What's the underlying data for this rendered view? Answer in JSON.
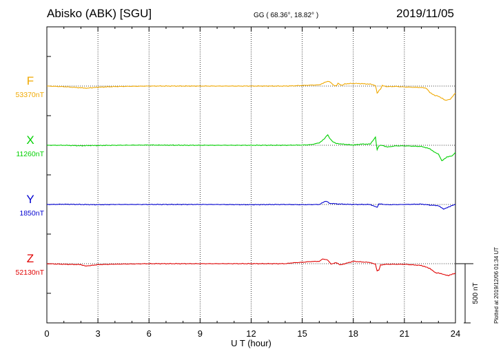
{
  "header": {
    "title": "Abisko (ABK)  [SGU]",
    "coords": "GG ( 68.36°,  18.82° )",
    "date": "2019/11/05"
  },
  "footer": {
    "plotted": "Plotted at 2019/12/06 01:34 UT"
  },
  "colors": {
    "F": "#f0a800",
    "X": "#00d000",
    "Y": "#0000d0",
    "Z": "#e00000"
  },
  "chart_data": {
    "type": "line",
    "xlabel": "U T (hour)",
    "xlim": [
      0,
      24
    ],
    "x_ticks": [
      "0",
      "3",
      "6",
      "9",
      "12",
      "15",
      "18",
      "21",
      "24"
    ],
    "scale_label": "500 nT",
    "scale_nT": 500,
    "series": [
      {
        "name": "F",
        "baseline_label": "53370nT",
        "color": "#f0a800",
        "baseline_nT": 53370,
        "points": [
          [
            0,
            0
          ],
          [
            1,
            -5
          ],
          [
            2,
            -15
          ],
          [
            2.3,
            -18
          ],
          [
            3,
            -10
          ],
          [
            4,
            -4
          ],
          [
            5,
            -2
          ],
          [
            6,
            0
          ],
          [
            8,
            0
          ],
          [
            10,
            0
          ],
          [
            12,
            0
          ],
          [
            14,
            0
          ],
          [
            14.5,
            2
          ],
          [
            15,
            5
          ],
          [
            15.5,
            8
          ],
          [
            16,
            10
          ],
          [
            16.3,
            30
          ],
          [
            16.5,
            40
          ],
          [
            16.7,
            30
          ],
          [
            16.8,
            10
          ],
          [
            17,
            0
          ],
          [
            17.1,
            25
          ],
          [
            17.3,
            5
          ],
          [
            17.5,
            18
          ],
          [
            18,
            22
          ],
          [
            18.5,
            20
          ],
          [
            19,
            16
          ],
          [
            19.3,
            5
          ],
          [
            19.4,
            -60
          ],
          [
            19.5,
            -40
          ],
          [
            19.6,
            -25
          ],
          [
            19.7,
            5
          ],
          [
            20,
            -5
          ],
          [
            20.5,
            -3
          ],
          [
            21,
            -8
          ],
          [
            21.5,
            -10
          ],
          [
            22,
            -12
          ],
          [
            22.3,
            -20
          ],
          [
            22.5,
            -55
          ],
          [
            22.8,
            -80
          ],
          [
            23,
            -85
          ],
          [
            23.4,
            -120
          ],
          [
            23.7,
            -110
          ],
          [
            24,
            -60
          ]
        ]
      },
      {
        "name": "X",
        "baseline_label": "11260nT",
        "color": "#00d000",
        "baseline_nT": 11260,
        "points": [
          [
            0,
            0
          ],
          [
            1,
            0
          ],
          [
            2,
            -4
          ],
          [
            2.5,
            -2
          ],
          [
            3,
            -2
          ],
          [
            4,
            0
          ],
          [
            6,
            2
          ],
          [
            8,
            0
          ],
          [
            10,
            0
          ],
          [
            12,
            0
          ],
          [
            14,
            0
          ],
          [
            15,
            2
          ],
          [
            15.5,
            5
          ],
          [
            16,
            20
          ],
          [
            16.3,
            55
          ],
          [
            16.5,
            90
          ],
          [
            16.6,
            60
          ],
          [
            16.8,
            30
          ],
          [
            17,
            15
          ],
          [
            17.5,
            8
          ],
          [
            18,
            2
          ],
          [
            18.5,
            10
          ],
          [
            19,
            10
          ],
          [
            19.3,
            70
          ],
          [
            19.4,
            -40
          ],
          [
            19.5,
            -5
          ],
          [
            19.7,
            0
          ],
          [
            20,
            -15
          ],
          [
            20.5,
            -5
          ],
          [
            21,
            -5
          ],
          [
            22,
            -10
          ],
          [
            22.5,
            -30
          ],
          [
            22.8,
            -60
          ],
          [
            23,
            -75
          ],
          [
            23.2,
            -130
          ],
          [
            23.5,
            -100
          ],
          [
            23.8,
            -90
          ],
          [
            24,
            -60
          ]
        ]
      },
      {
        "name": "Y",
        "baseline_label": "1850nT",
        "color": "#0000d0",
        "baseline_nT": 1850,
        "points": [
          [
            0,
            0
          ],
          [
            1,
            2
          ],
          [
            2,
            0
          ],
          [
            3,
            -2
          ],
          [
            4,
            0
          ],
          [
            6,
            0
          ],
          [
            8,
            0
          ],
          [
            10,
            0
          ],
          [
            12,
            -2
          ],
          [
            14,
            0
          ],
          [
            15,
            -2
          ],
          [
            16,
            0
          ],
          [
            16.4,
            30
          ],
          [
            16.6,
            10
          ],
          [
            17,
            5
          ],
          [
            17.5,
            2
          ],
          [
            18,
            0
          ],
          [
            19,
            0
          ],
          [
            19.4,
            -25
          ],
          [
            19.5,
            5
          ],
          [
            20,
            -2
          ],
          [
            21,
            0
          ],
          [
            22,
            3
          ],
          [
            22.5,
            -5
          ],
          [
            23,
            -10
          ],
          [
            23.3,
            -40
          ],
          [
            23.6,
            -20
          ],
          [
            24,
            0
          ]
        ]
      },
      {
        "name": "Z",
        "baseline_label": "52130nT",
        "color": "#e00000",
        "baseline_nT": 52130,
        "points": [
          [
            0,
            0
          ],
          [
            1,
            -5
          ],
          [
            2,
            -8
          ],
          [
            2.3,
            -20
          ],
          [
            3,
            -8
          ],
          [
            4,
            -4
          ],
          [
            5,
            -2
          ],
          [
            6,
            0
          ],
          [
            8,
            0
          ],
          [
            10,
            0
          ],
          [
            12,
            0
          ],
          [
            14,
            0
          ],
          [
            14.5,
            8
          ],
          [
            15,
            12
          ],
          [
            15.5,
            18
          ],
          [
            16,
            20
          ],
          [
            16.2,
            40
          ],
          [
            16.5,
            30
          ],
          [
            16.7,
            -5
          ],
          [
            17,
            10
          ],
          [
            17.2,
            -10
          ],
          [
            17.5,
            0
          ],
          [
            18,
            20
          ],
          [
            18.5,
            15
          ],
          [
            19,
            10
          ],
          [
            19.3,
            -5
          ],
          [
            19.4,
            -60
          ],
          [
            19.5,
            -55
          ],
          [
            19.6,
            -10
          ],
          [
            20,
            -5
          ],
          [
            20.5,
            -5
          ],
          [
            21,
            -5
          ],
          [
            21.5,
            -10
          ],
          [
            22,
            -15
          ],
          [
            22.5,
            -40
          ],
          [
            22.8,
            -75
          ],
          [
            23,
            -80
          ],
          [
            23.3,
            -90
          ],
          [
            23.6,
            -100
          ],
          [
            24,
            -80
          ]
        ]
      }
    ]
  }
}
